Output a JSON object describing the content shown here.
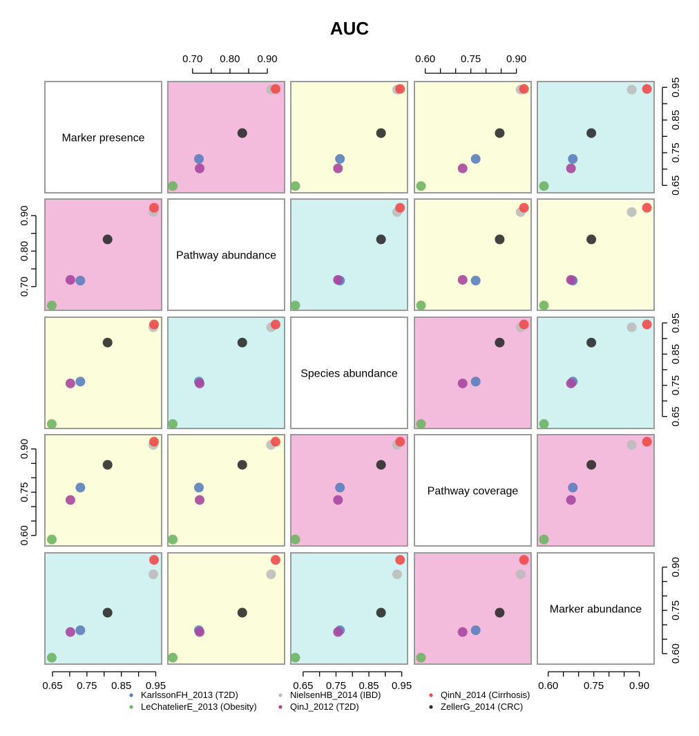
{
  "chart_data": {
    "type": "scatter",
    "title": "AUC",
    "variables": [
      "Marker presence",
      "Pathway abundance",
      "Species abundance",
      "Pathway coverage",
      "Marker abundance"
    ],
    "ranges": {
      "Marker presence": [
        0.64,
        0.955
      ],
      "Pathway abundance": [
        0.645,
        0.935
      ],
      "Species abundance": [
        0.625,
        0.955
      ],
      "Pathway coverage": [
        0.578,
        0.935
      ],
      "Marker abundance": [
        0.578,
        0.935
      ]
    },
    "axis_ticks": {
      "left": [
        {
          "row": 1,
          "ticks": [
            {
              "value": 0.7,
              "label": "0.70"
            },
            {
              "value": 0.75,
              "label": ""
            },
            {
              "value": 0.8,
              "label": "0.80"
            },
            {
              "value": 0.85,
              "label": ""
            },
            {
              "value": 0.9,
              "label": "0.90"
            }
          ]
        },
        {
          "row": 3,
          "ticks": [
            {
              "value": 0.6,
              "label": "0.60"
            },
            {
              "value": 0.65,
              "label": ""
            },
            {
              "value": 0.7,
              "label": ""
            },
            {
              "value": 0.75,
              "label": "0.75"
            },
            {
              "value": 0.8,
              "label": ""
            },
            {
              "value": 0.85,
              "label": ""
            },
            {
              "value": 0.9,
              "label": "0.90"
            }
          ]
        }
      ],
      "right": [
        {
          "row": 0,
          "ticks": [
            {
              "value": 0.65,
              "label": "0.65"
            },
            {
              "value": 0.7,
              "label": ""
            },
            {
              "value": 0.75,
              "label": "0.75"
            },
            {
              "value": 0.8,
              "label": ""
            },
            {
              "value": 0.85,
              "label": "0.85"
            },
            {
              "value": 0.9,
              "label": ""
            },
            {
              "value": 0.95,
              "label": "0.95"
            }
          ]
        },
        {
          "row": 2,
          "ticks": [
            {
              "value": 0.65,
              "label": "0.65"
            },
            {
              "value": 0.7,
              "label": ""
            },
            {
              "value": 0.75,
              "label": "0.75"
            },
            {
              "value": 0.8,
              "label": ""
            },
            {
              "value": 0.85,
              "label": "0.85"
            },
            {
              "value": 0.9,
              "label": ""
            },
            {
              "value": 0.95,
              "label": "0.95"
            }
          ]
        },
        {
          "row": 4,
          "ticks": [
            {
              "value": 0.6,
              "label": "0.60"
            },
            {
              "value": 0.65,
              "label": ""
            },
            {
              "value": 0.7,
              "label": ""
            },
            {
              "value": 0.75,
              "label": "0.75"
            },
            {
              "value": 0.8,
              "label": ""
            },
            {
              "value": 0.85,
              "label": ""
            },
            {
              "value": 0.9,
              "label": "0.90"
            }
          ]
        }
      ],
      "top": [
        {
          "col": 1,
          "ticks": [
            {
              "value": 0.7,
              "label": "0.70"
            },
            {
              "value": 0.75,
              "label": ""
            },
            {
              "value": 0.8,
              "label": "0.80"
            },
            {
              "value": 0.85,
              "label": ""
            },
            {
              "value": 0.9,
              "label": "0.90"
            }
          ]
        },
        {
          "col": 3,
          "ticks": [
            {
              "value": 0.6,
              "label": "0.60"
            },
            {
              "value": 0.65,
              "label": ""
            },
            {
              "value": 0.7,
              "label": ""
            },
            {
              "value": 0.75,
              "label": "0.75"
            },
            {
              "value": 0.8,
              "label": ""
            },
            {
              "value": 0.85,
              "label": ""
            },
            {
              "value": 0.9,
              "label": "0.90"
            }
          ]
        }
      ],
      "bottom": [
        {
          "col": 0,
          "ticks": [
            {
              "value": 0.65,
              "label": "0.65"
            },
            {
              "value": 0.7,
              "label": ""
            },
            {
              "value": 0.75,
              "label": "0.75"
            },
            {
              "value": 0.8,
              "label": ""
            },
            {
              "value": 0.85,
              "label": "0.85"
            },
            {
              "value": 0.9,
              "label": ""
            },
            {
              "value": 0.95,
              "label": "0.95"
            }
          ]
        },
        {
          "col": 2,
          "ticks": [
            {
              "value": 0.65,
              "label": "0.65"
            },
            {
              "value": 0.7,
              "label": ""
            },
            {
              "value": 0.75,
              "label": "0.75"
            },
            {
              "value": 0.8,
              "label": ""
            },
            {
              "value": 0.85,
              "label": "0.85"
            },
            {
              "value": 0.9,
              "label": ""
            },
            {
              "value": 0.95,
              "label": "0.95"
            }
          ]
        },
        {
          "col": 4,
          "ticks": [
            {
              "value": 0.6,
              "label": "0.60"
            },
            {
              "value": 0.65,
              "label": ""
            },
            {
              "value": 0.7,
              "label": ""
            },
            {
              "value": 0.75,
              "label": "0.75"
            },
            {
              "value": 0.8,
              "label": ""
            },
            {
              "value": 0.85,
              "label": ""
            },
            {
              "value": 0.9,
              "label": "0.90"
            }
          ]
        }
      ]
    },
    "panel_background": [
      [
        null,
        "pink",
        "yellow",
        "yellow",
        "cyan"
      ],
      [
        "pink",
        null,
        "cyan",
        "yellow",
        "yellow"
      ],
      [
        "yellow",
        "cyan",
        null,
        "pink",
        "cyan"
      ],
      [
        "yellow",
        "yellow",
        "pink",
        null,
        "pink"
      ],
      [
        "cyan",
        "yellow",
        "cyan",
        "pink",
        null
      ]
    ],
    "background_colors": {
      "pink": "#f3bbdc",
      "yellow": "#fcfddb",
      "cyan": "#d2f2f2"
    },
    "series": [
      {
        "name": "KarlssonFH_2013 (T2D)",
        "color": "#5b7fbc",
        "values": {
          "Marker presence": 0.731,
          "Pathway abundance": 0.717,
          "Species abundance": 0.762,
          "Pathway coverage": 0.766,
          "Marker abundance": 0.681
        }
      },
      {
        "name": "LeChatelierE_2013 (Obesity)",
        "color": "#6fb464",
        "values": {
          "Marker presence": 0.648,
          "Pathway abundance": 0.647,
          "Species abundance": 0.626,
          "Pathway coverage": 0.586,
          "Marker abundance": 0.586
        }
      },
      {
        "name": "NielsenHB_2014 (IBD)",
        "color": "#bcbcbc",
        "values": {
          "Marker presence": 0.943,
          "Pathway abundance": 0.91,
          "Species abundance": 0.936,
          "Pathway coverage": 0.914,
          "Marker abundance": 0.875
        }
      },
      {
        "name": "QinJ_2012 (T2D)",
        "color": "#a8479e",
        "values": {
          "Marker presence": 0.702,
          "Pathway abundance": 0.719,
          "Species abundance": 0.756,
          "Pathway coverage": 0.723,
          "Marker abundance": 0.675
        }
      },
      {
        "name": "QinN_2014 (Cirrhosis)",
        "color": "#ee4b4b",
        "values": {
          "Marker presence": 0.945,
          "Pathway abundance": 0.922,
          "Species abundance": 0.945,
          "Pathway coverage": 0.925,
          "Marker abundance": 0.925
        }
      },
      {
        "name": "ZellerG_2014 (CRC)",
        "color": "#2d2d2d",
        "values": {
          "Marker presence": 0.81,
          "Pathway abundance": 0.833,
          "Species abundance": 0.887,
          "Pathway coverage": 0.845,
          "Marker abundance": 0.742
        }
      }
    ],
    "legend_position": "bottom"
  }
}
